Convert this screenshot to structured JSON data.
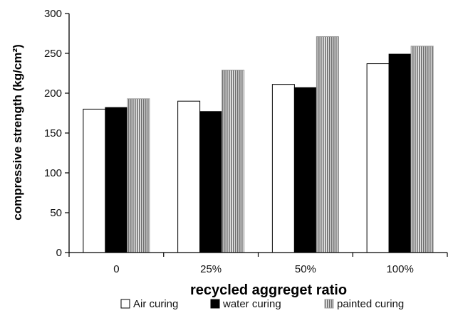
{
  "chart_data": {
    "type": "bar",
    "categories": [
      "0",
      "25%",
      "50%",
      "100%"
    ],
    "series": [
      {
        "name": "Air curing",
        "values": [
          180,
          190,
          211,
          237
        ],
        "fill": "#ffffff",
        "pattern": "none"
      },
      {
        "name": "water curing",
        "values": [
          182,
          177,
          207,
          249
        ],
        "fill": "#000000",
        "pattern": "none"
      },
      {
        "name": "painted curing",
        "values": [
          193,
          229,
          271,
          259
        ],
        "fill": "#9a9a9a",
        "pattern": "vertical-stripes"
      }
    ],
    "xlabel": "recycled aggreget ratio",
    "ylabel": "compressive strength (kg/cm²)",
    "ylim": [
      0,
      300
    ],
    "yticks": [
      0,
      50,
      100,
      150,
      200,
      250,
      300
    ],
    "grid": false,
    "legend_position": "bottom"
  }
}
